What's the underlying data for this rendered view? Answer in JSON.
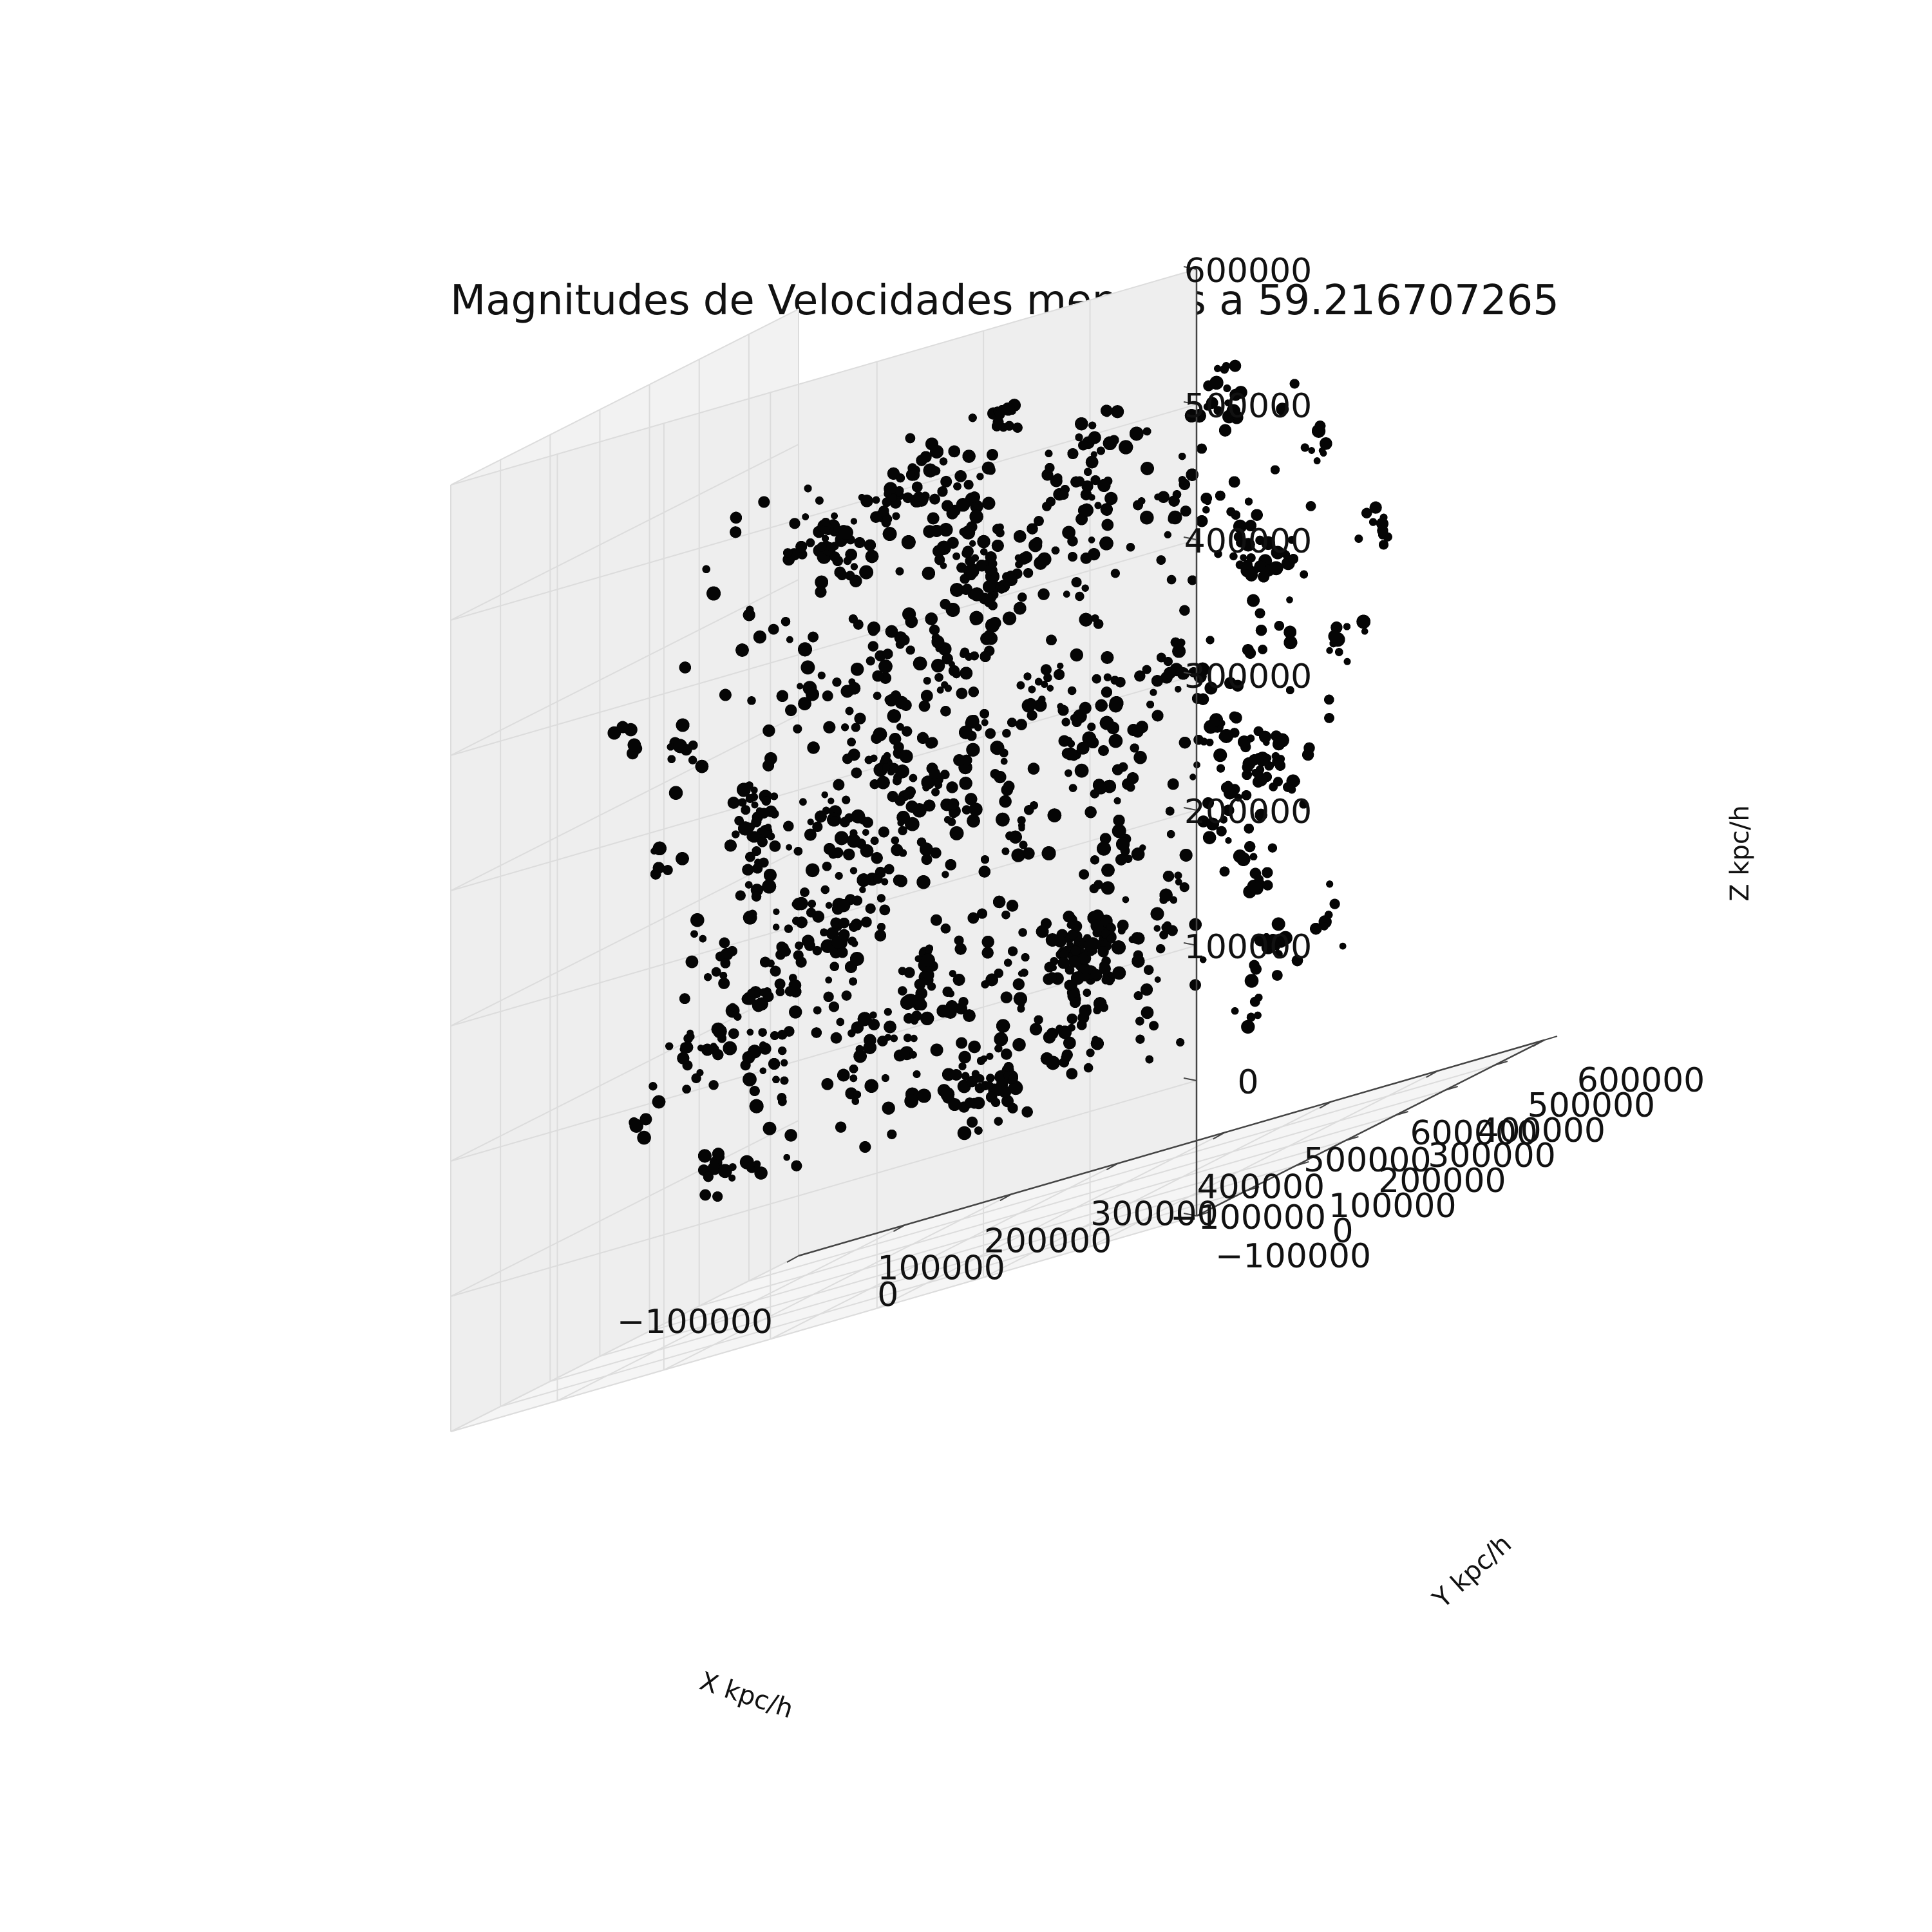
{
  "chart_data": {
    "type": "scatter",
    "projection": "3d",
    "title": "Magnitudes de Velocidades menores a 59.216707265",
    "xlabel": "X kpc/h",
    "ylabel": "Y kpc/h",
    "zlabel": "Z kpc/h",
    "xlim": [
      -100000,
      600000
    ],
    "ylim": [
      -100000,
      600000
    ],
    "zlim": [
      -100000,
      600000
    ],
    "x_ticks": [
      "−100000",
      "0",
      "100000",
      "200000",
      "300000",
      "400000",
      "500000",
      "600000"
    ],
    "y_ticks": [
      "−100000",
      "0",
      "100000",
      "200000",
      "300000",
      "400000",
      "500000",
      "600000"
    ],
    "z_ticks": [
      "−100000",
      "0",
      "100000",
      "200000",
      "300000",
      "400000",
      "500000",
      "600000"
    ],
    "grid": true,
    "marker_color": "#050505",
    "data_extent": {
      "x": [
        0,
        500000
      ],
      "y": [
        0,
        500000
      ],
      "z": [
        0,
        500000
      ]
    }
  },
  "colors": {
    "pane_left": "#f2f2f2",
    "pane_back": "#eeeeee",
    "pane_floor": "#f5f5f5",
    "grid": "#dcdcdc",
    "axis_line": "#444444",
    "points": "#050505"
  }
}
